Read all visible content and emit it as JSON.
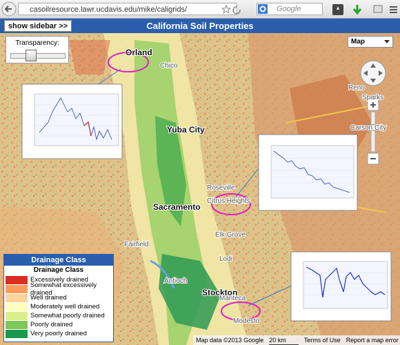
{
  "browser": {
    "url": "casoilresource.lawr.ucdavis.edu/mike/caligrids/",
    "search_placeholder": "Google"
  },
  "header": {
    "button": "show sidebar >>",
    "title": "California Soil Properties"
  },
  "map_controls": {
    "transparency_label": "Transparency:",
    "map_type": "Map"
  },
  "places": [
    "Orland",
    "Yuba City",
    "Sacramento",
    "Stockton"
  ],
  "base_labels": [
    "Chico",
    "Reno",
    "Sparks",
    "Carson City",
    "Roseville",
    "Citrus Heights",
    "Elk Grove",
    "Fairfield",
    "Lodi",
    "Antioch",
    "Manteca",
    "Modesto"
  ],
  "legend": {
    "header": "Drainage Class",
    "title": "Drainage Class",
    "items": [
      {
        "label": "Excessively drained",
        "color": "#d7301f"
      },
      {
        "label": "Somewhat excessively drained",
        "color": "#fc9c5c"
      },
      {
        "label": "Well drained",
        "color": "#fdd49e"
      },
      {
        "label": "Moderately well drained",
        "color": "#ffffc0"
      },
      {
        "label": "Somewhat poorly drained",
        "color": "#d9ef8b"
      },
      {
        "label": "Poorly drained",
        "color": "#7fc65a"
      },
      {
        "label": "Very poorly drained",
        "color": "#1a9850"
      }
    ]
  },
  "footer": {
    "attribution": "Map data ©2013 Google",
    "scale": "20 km",
    "terms": "Terms of Use",
    "report": "Report a map error"
  }
}
